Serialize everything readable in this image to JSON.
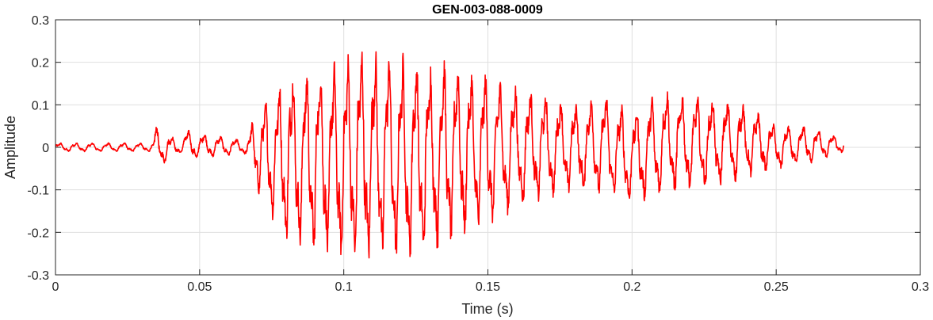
{
  "chart_data": {
    "type": "line",
    "title": "GEN-003-088-0009",
    "xlabel": "Time (s)",
    "ylabel": "Amplitude",
    "xlim": [
      0,
      0.3
    ],
    "ylim": [
      -0.3,
      0.3
    ],
    "x_ticks": [
      0,
      0.05,
      0.1,
      0.15,
      0.2,
      0.25,
      0.3
    ],
    "x_tick_labels": [
      "0",
      "0.05",
      "0.1",
      "0.15",
      "0.2",
      "0.25",
      "0.3"
    ],
    "y_ticks": [
      -0.3,
      -0.2,
      -0.1,
      0,
      0.1,
      0.2,
      0.3
    ],
    "y_tick_labels": [
      "-0.3",
      "-0.2",
      "-0.1",
      "0",
      "0.1",
      "0.2",
      "0.3"
    ],
    "grid": true,
    "series": [
      {
        "color": "#ff0000",
        "x": [
          0,
          0.034,
          0.0345,
          0.044,
          0.0445,
          0.066,
          0.07,
          0.076,
          0.08,
          0.085,
          0.09,
          0.095,
          0.1,
          0.105,
          0.11,
          0.115,
          0.12,
          0.125,
          0.13,
          0.135,
          0.14,
          0.145,
          0.15,
          0.155,
          0.16,
          0.17,
          0.18,
          0.19,
          0.2,
          0.21,
          0.22,
          0.23,
          0.24,
          0.25,
          0.26,
          0.2735
        ],
        "envelope_max": [
          0.01,
          0.01,
          0.05,
          0.01,
          0.04,
          0.015,
          0.09,
          0.12,
          0.18,
          0.17,
          0.19,
          0.19,
          0.2,
          0.23,
          0.22,
          0.22,
          0.21,
          0.2,
          0.19,
          0.2,
          0.19,
          0.17,
          0.17,
          0.15,
          0.14,
          0.12,
          0.1,
          0.12,
          0.08,
          0.13,
          0.12,
          0.11,
          0.1,
          0.05,
          0.05,
          0.02
        ],
        "envelope_min": [
          -0.01,
          -0.01,
          -0.05,
          -0.01,
          -0.03,
          -0.015,
          -0.1,
          -0.17,
          -0.22,
          -0.23,
          -0.25,
          -0.25,
          -0.26,
          -0.27,
          -0.26,
          -0.26,
          -0.27,
          -0.26,
          -0.24,
          -0.23,
          -0.21,
          -0.2,
          -0.18,
          -0.16,
          -0.14,
          -0.12,
          -0.1,
          -0.11,
          -0.13,
          -0.11,
          -0.1,
          -0.09,
          -0.07,
          -0.05,
          -0.04,
          -0.01
        ]
      }
    ]
  }
}
